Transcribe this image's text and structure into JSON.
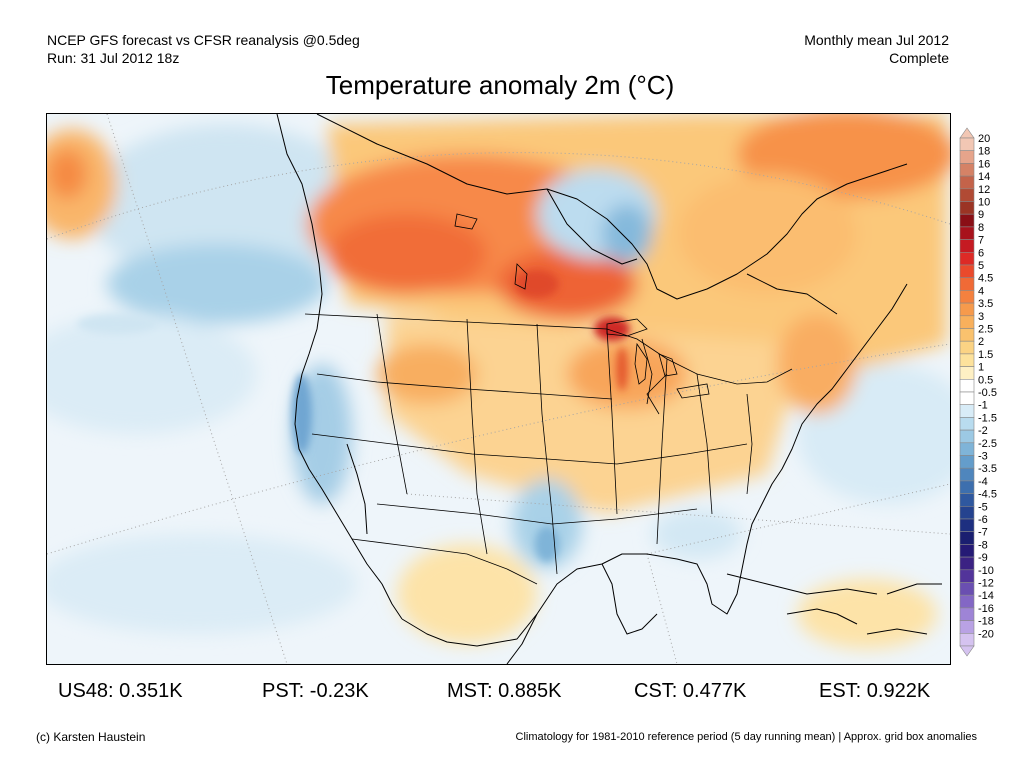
{
  "header": {
    "left_line1": "NCEP GFS forecast vs CFSR reanalysis @0.5deg",
    "left_line2": "Run: 31 Jul 2012 18z",
    "right_line1": "Monthly mean Jul 2012",
    "right_line2": "Complete"
  },
  "title": "Temperature anomaly 2m (°C)",
  "legend": {
    "levels": [
      {
        "label": "20",
        "color": "#f2c7b4"
      },
      {
        "label": "18",
        "color": "#e6a48b"
      },
      {
        "label": "16",
        "color": "#d58266"
      },
      {
        "label": "14",
        "color": "#c4634a"
      },
      {
        "label": "12",
        "color": "#b14a34"
      },
      {
        "label": "10",
        "color": "#9b3424"
      },
      {
        "label": "9",
        "color": "#8a0f16"
      },
      {
        "label": "8",
        "color": "#a8121c"
      },
      {
        "label": "7",
        "color": "#c51a22"
      },
      {
        "label": "6",
        "color": "#dd2a26"
      },
      {
        "label": "5",
        "color": "#ea4a2c"
      },
      {
        "label": "4.5",
        "color": "#f06a36"
      },
      {
        "label": "4",
        "color": "#f4813f"
      },
      {
        "label": "3.5",
        "color": "#f69a4c"
      },
      {
        "label": "3",
        "color": "#f8b05c"
      },
      {
        "label": "2.5",
        "color": "#fac26e"
      },
      {
        "label": "2",
        "color": "#fbd384"
      },
      {
        "label": "1.5",
        "color": "#fde29c"
      },
      {
        "label": "1",
        "color": "#fef0c4"
      },
      {
        "label": "0.5",
        "color": "#ffffff"
      },
      {
        "label": "-0.5",
        "color": "#ffffff"
      },
      {
        "label": "-1",
        "color": "#d8ecf7"
      },
      {
        "label": "-1.5",
        "color": "#b9dcef"
      },
      {
        "label": "-2",
        "color": "#9cc9e4"
      },
      {
        "label": "-2.5",
        "color": "#7fb4d8"
      },
      {
        "label": "-3",
        "color": "#649dcb"
      },
      {
        "label": "-3.5",
        "color": "#4f86bd"
      },
      {
        "label": "-4",
        "color": "#3d6fae"
      },
      {
        "label": "-4.5",
        "color": "#2f589f"
      },
      {
        "label": "-5",
        "color": "#25438f"
      },
      {
        "label": "-6",
        "color": "#1d2f80"
      },
      {
        "label": "-7",
        "color": "#1a1f70"
      },
      {
        "label": "-8",
        "color": "#251a75"
      },
      {
        "label": "-9",
        "color": "#3b2283"
      },
      {
        "label": "-10",
        "color": "#52349a"
      },
      {
        "label": "-12",
        "color": "#6a4fb1"
      },
      {
        "label": "-14",
        "color": "#8367c5"
      },
      {
        "label": "-16",
        "color": "#9e84d6"
      },
      {
        "label": "-18",
        "color": "#b9a2e4"
      },
      {
        "label": "-20",
        "color": "#d5c3f0"
      }
    ]
  },
  "regional_stats": [
    {
      "label": "US48: 0.351K"
    },
    {
      "label": "PST: -0.23K"
    },
    {
      "label": "MST: 0.885K"
    },
    {
      "label": "CST: 0.477K"
    },
    {
      "label": "EST: 0.922K"
    }
  ],
  "footer": {
    "copyright": "(c) Karsten Haustein",
    "note": "Climatology for 1981-2010 reference period (5 day running mean) | Approx. grid box anomalies"
  }
}
